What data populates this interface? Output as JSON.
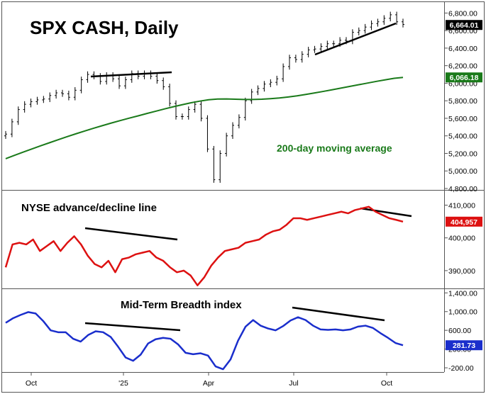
{
  "chart_data": [
    {
      "type": "line",
      "panel": "price",
      "title": "SPX CASH, Daily",
      "annotation": "200-day moving average",
      "ylim": [
        4800,
        6900
      ],
      "y_ticks": [
        "4,800.00",
        "5,000.00",
        "5,200.00",
        "5,400.00",
        "5,600.00",
        "5,800.00",
        "6,000.00",
        "6,200.00",
        "6,400.00",
        "6,600.00",
        "6,800.00"
      ],
      "last_value_label": "6,664.01",
      "ma_value_label": "6,066.18",
      "colors": {
        "price": "#000000",
        "ma": "#1a7a1a",
        "trendline": "#000000"
      },
      "series": [
        {
          "name": "price",
          "values": [
            5420,
            5560,
            5700,
            5760,
            5790,
            5810,
            5820,
            5860,
            5890,
            5880,
            5840,
            5920,
            6040,
            6100,
            6080,
            6020,
            6090,
            6050,
            5970,
            6040,
            6110,
            6080,
            6110,
            6080,
            6030,
            5960,
            5770,
            5620,
            5620,
            5700,
            5760,
            5600,
            5250,
            4900,
            5200,
            5400,
            5520,
            5610,
            5800,
            5900,
            5940,
            5990,
            6010,
            6050,
            6190,
            6290,
            6270,
            6330,
            6380,
            6390,
            6420,
            6450,
            6450,
            6490,
            6480,
            6580,
            6600,
            6640,
            6680,
            6700,
            6740,
            6780,
            6700,
            6670
          ]
        },
        {
          "name": "200-day moving average",
          "values": [
            5140,
            5178,
            5215,
            5252,
            5288,
            5323,
            5358,
            5392,
            5425,
            5457,
            5488,
            5518,
            5547,
            5575,
            5602,
            5628,
            5655,
            5681,
            5707,
            5732,
            5755,
            5777,
            5796,
            5812,
            5820,
            5821,
            5818,
            5815,
            5815,
            5818,
            5824,
            5832,
            5843,
            5856,
            5872,
            5889,
            5907,
            5926,
            5945,
            5964,
            5983,
            6002,
            6021,
            6039,
            6056,
            6066
          ]
        }
      ]
    },
    {
      "type": "line",
      "panel": "advance-decline",
      "title": "NYSE advance/decline line",
      "ylim": [
        385000,
        414000
      ],
      "y_ticks": [
        "390,000",
        "400,000",
        "410,000"
      ],
      "last_value_label": "404,957",
      "colors": {
        "line": "#dd1111"
      },
      "values": [
        391000,
        398000,
        398500,
        398000,
        399500,
        396000,
        397500,
        399000,
        396000,
        398500,
        400500,
        398000,
        394500,
        392000,
        391000,
        393000,
        389500,
        393500,
        394000,
        395000,
        395500,
        396000,
        394000,
        393000,
        391000,
        389500,
        390000,
        388500,
        385500,
        388000,
        391500,
        394000,
        396000,
        396500,
        397000,
        398500,
        399000,
        399500,
        401000,
        402000,
        402500,
        404000,
        406000,
        406000,
        405500,
        406000,
        406500,
        407000,
        407500,
        408000,
        407500,
        408500,
        409000,
        409500,
        408000,
        407000,
        406000,
        405500,
        404957
      ]
    },
    {
      "type": "line",
      "panel": "breadth",
      "title": "Mid-Term Breadth index",
      "ylim": [
        -260,
        1450
      ],
      "y_ticks": [
        "-200.00",
        "200.00",
        "600.00",
        "1,000.00",
        "1,400.00"
      ],
      "last_value_label": "281.73",
      "colors": {
        "line": "#1a2ecc"
      },
      "values": [
        760,
        860,
        930,
        990,
        960,
        800,
        600,
        560,
        560,
        420,
        360,
        500,
        580,
        560,
        460,
        250,
        20,
        -50,
        80,
        320,
        410,
        440,
        420,
        300,
        120,
        90,
        110,
        60,
        -170,
        -230,
        -20,
        380,
        680,
        820,
        700,
        640,
        600,
        690,
        810,
        880,
        820,
        700,
        620,
        610,
        620,
        600,
        620,
        680,
        700,
        650,
        540,
        440,
        330,
        282
      ],
      "x_ticks": [
        "Oct",
        "'25",
        "Apr",
        "Jul",
        "Oct"
      ]
    }
  ]
}
